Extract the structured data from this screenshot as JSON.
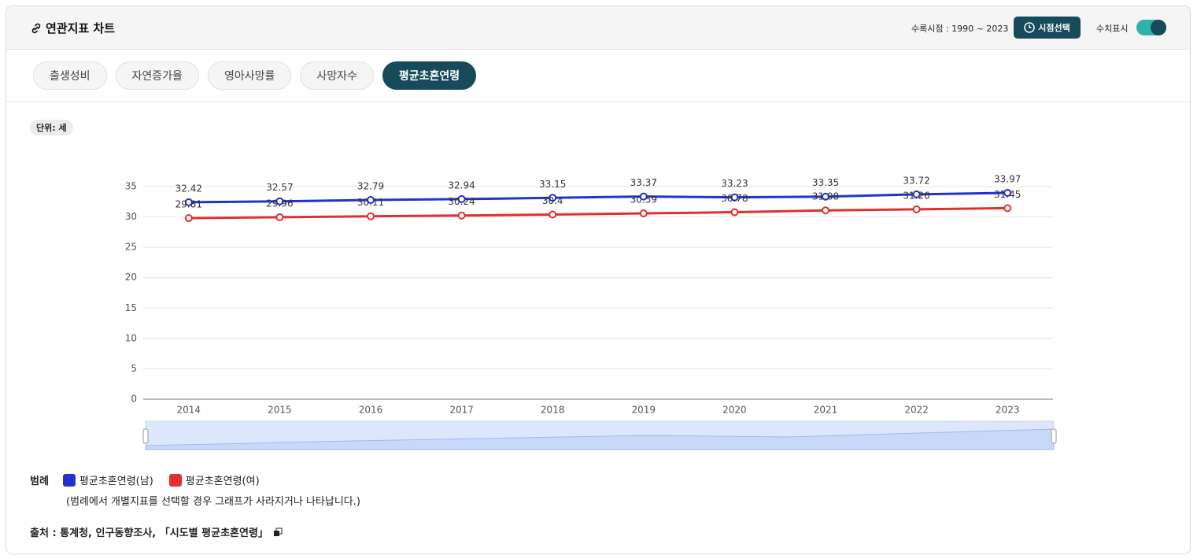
{
  "header": {
    "title": "연관지표 차트",
    "period": "수록시점 : 1990 ~ 2023",
    "period_button": "시점선택",
    "toggle_label": "수치표시"
  },
  "tabs": [
    "출생성비",
    "자연증가율",
    "영아사망률",
    "사망자수",
    "평균초혼연령"
  ],
  "unit": "단위: 세",
  "chart_data": {
    "type": "line",
    "show_values": true,
    "grid": true,
    "categories": [
      "2014",
      "2015",
      "2016",
      "2017",
      "2018",
      "2019",
      "2020",
      "2021",
      "2022",
      "2023"
    ],
    "series": [
      {
        "name": "평균초혼연령(남)",
        "color": "#2233cc",
        "values": [
          32.42,
          32.57,
          32.79,
          32.94,
          33.15,
          33.37,
          33.23,
          33.35,
          33.72,
          33.97
        ]
      },
      {
        "name": "평균초혼연령(여)",
        "color": "#e03030",
        "values": [
          29.81,
          29.96,
          30.11,
          30.24,
          30.4,
          30.59,
          30.78,
          31.08,
          31.26,
          31.45
        ]
      }
    ],
    "ylim": [
      0,
      35
    ],
    "yticks": [
      0,
      5,
      10,
      15,
      20,
      25,
      30,
      35
    ]
  },
  "legend": {
    "label": "범례",
    "note": "(범례에서 개별지표를 선택할 경우 그래프가 사라지거나 나타납니다.)"
  },
  "source": "출처 : 통계청, 인구동향조사, 「시도별 평균초혼연령」"
}
